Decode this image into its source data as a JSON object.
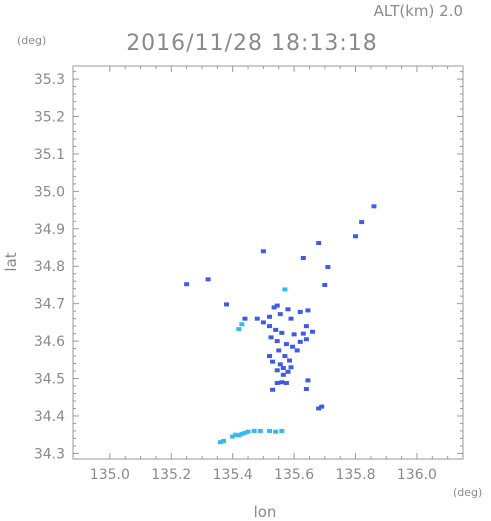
{
  "chart_data": {
    "type": "scatter",
    "title": "2016/11/28 18:13:18",
    "subtitle": "ALT(km) 2.0",
    "xlabel": "lon",
    "ylabel": "lat",
    "x_unit": "(deg)",
    "y_unit": "(deg)",
    "xlim": [
      134.88,
      136.15
    ],
    "ylim": [
      34.285,
      35.335
    ],
    "x_ticks": [
      "135.0",
      "135.2",
      "135.4",
      "135.6",
      "135.8",
      "136.0"
    ],
    "y_ticks": [
      "34.3",
      "34.4",
      "34.5",
      "34.6",
      "34.7",
      "34.8",
      "34.9",
      "35.0",
      "35.1",
      "35.2",
      "35.3"
    ],
    "grid": false,
    "colors": {
      "axis": "#9a9a9a",
      "text": "#8a8a8a",
      "echo_strong": "#3e5ae6",
      "echo_weak": "#35b8f0",
      "echo_dark": "#2338a8"
    },
    "series": [
      {
        "color": "#3e5ae6",
        "points": [
          [
            135.86,
            34.96
          ],
          [
            135.82,
            34.918
          ],
          [
            135.8,
            34.88
          ],
          [
            135.63,
            34.822
          ],
          [
            135.68,
            34.862
          ],
          [
            135.71,
            34.798
          ],
          [
            135.7,
            34.75
          ],
          [
            135.32,
            34.765
          ],
          [
            135.25,
            34.752
          ],
          [
            135.5,
            34.84
          ],
          [
            135.38,
            34.698
          ],
          [
            135.44,
            34.66
          ],
          [
            135.48,
            34.66
          ],
          [
            135.5,
            34.65
          ],
          [
            135.52,
            34.665
          ],
          [
            135.535,
            34.69
          ],
          [
            135.555,
            34.672
          ],
          [
            135.59,
            34.66
          ],
          [
            135.62,
            34.678
          ],
          [
            135.645,
            34.682
          ],
          [
            135.64,
            34.64
          ],
          [
            135.66,
            34.625
          ],
          [
            135.63,
            34.62
          ],
          [
            135.52,
            34.64
          ],
          [
            135.54,
            34.63
          ],
          [
            135.56,
            34.622
          ],
          [
            135.6,
            34.618
          ],
          [
            135.64,
            34.605
          ],
          [
            135.62,
            34.598
          ],
          [
            135.525,
            34.61
          ],
          [
            135.545,
            34.6
          ],
          [
            135.575,
            34.592
          ],
          [
            135.595,
            34.585
          ],
          [
            135.61,
            34.575
          ],
          [
            135.55,
            34.575
          ],
          [
            135.57,
            34.56
          ],
          [
            135.585,
            34.548
          ],
          [
            135.555,
            34.538
          ],
          [
            135.565,
            34.528
          ],
          [
            135.545,
            34.522
          ],
          [
            135.58,
            34.518
          ],
          [
            135.565,
            34.51
          ],
          [
            135.59,
            34.53
          ],
          [
            135.53,
            34.545
          ],
          [
            135.52,
            34.56
          ],
          [
            135.545,
            34.488
          ],
          [
            135.56,
            34.49
          ],
          [
            135.575,
            34.488
          ],
          [
            135.645,
            34.495
          ],
          [
            135.64,
            34.472
          ],
          [
            135.68,
            34.42
          ],
          [
            135.69,
            34.425
          ],
          [
            135.53,
            34.47
          ],
          [
            135.545,
            34.695
          ],
          [
            135.58,
            34.685
          ]
        ]
      },
      {
        "color": "#35b8f0",
        "points": [
          [
            135.57,
            34.738
          ],
          [
            135.43,
            34.645
          ],
          [
            135.42,
            34.632
          ],
          [
            135.36,
            34.33
          ],
          [
            135.37,
            34.333
          ],
          [
            135.4,
            34.345
          ],
          [
            135.41,
            34.35
          ],
          [
            135.42,
            34.348
          ],
          [
            135.43,
            34.352
          ],
          [
            135.44,
            34.355
          ],
          [
            135.45,
            34.358
          ],
          [
            135.47,
            34.36
          ],
          [
            135.49,
            34.36
          ],
          [
            135.52,
            34.36
          ],
          [
            135.54,
            34.358
          ],
          [
            135.56,
            34.36
          ]
        ]
      }
    ]
  }
}
